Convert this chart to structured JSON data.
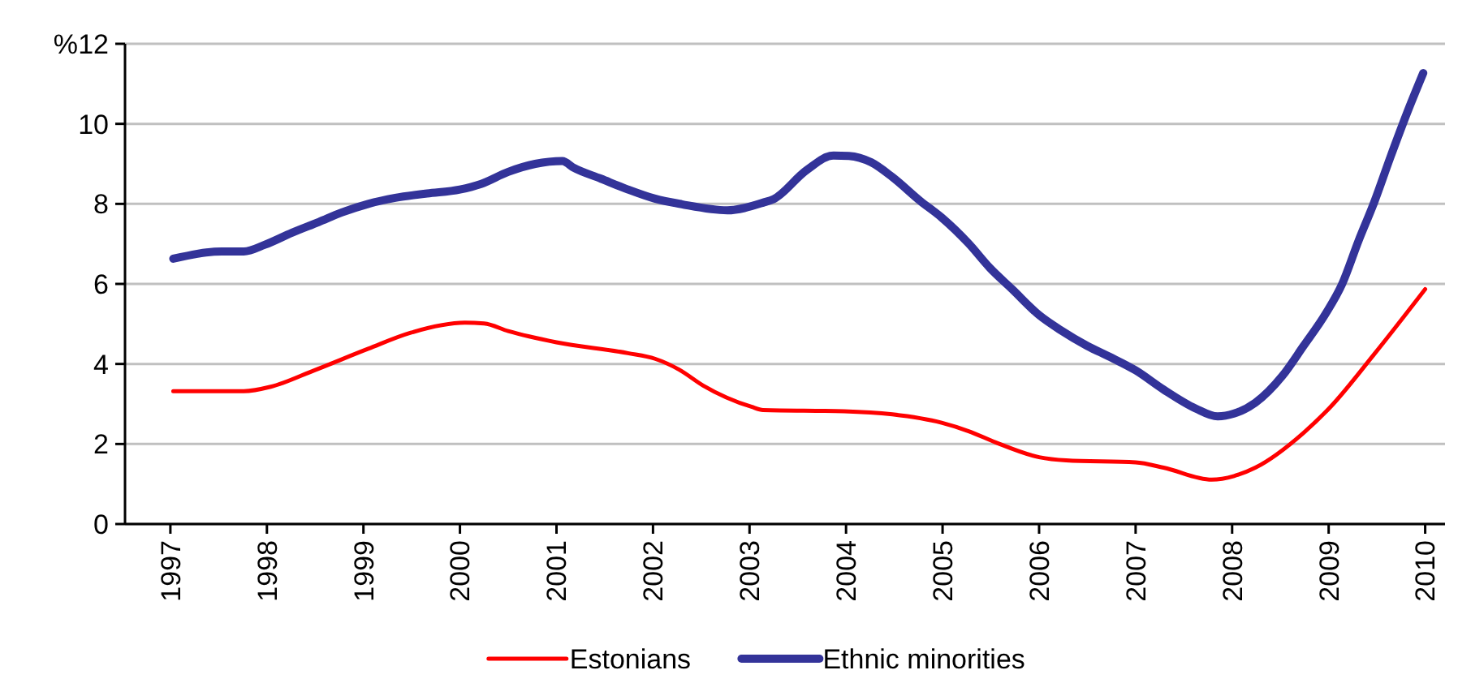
{
  "chart_data": {
    "type": "line",
    "ylabel": "%",
    "xlim": [
      1996.53,
      2010.34
    ],
    "xticks": [
      {
        "value": 1997,
        "label": "1997"
      },
      {
        "value": 1998,
        "label": "1998"
      },
      {
        "value": 1999,
        "label": "1999"
      },
      {
        "value": 2000,
        "label": "2000"
      },
      {
        "value": 2001,
        "label": "2001"
      },
      {
        "value": 2002,
        "label": "2002"
      },
      {
        "value": 2003,
        "label": "2003"
      },
      {
        "value": 2004,
        "label": "2004"
      },
      {
        "value": 2005,
        "label": "2005"
      },
      {
        "value": 2006,
        "label": "2006"
      },
      {
        "value": 2007,
        "label": "2007"
      },
      {
        "value": 2008,
        "label": "2008"
      },
      {
        "value": 2009,
        "label": "2009"
      },
      {
        "value": 2010,
        "label": "2010"
      }
    ],
    "ylim": [
      0,
      12
    ],
    "yticks": [
      0,
      2,
      4,
      6,
      8,
      10,
      12
    ],
    "grid": "y",
    "legend": "bottom",
    "marker": "none",
    "line_style": "solid",
    "series": [
      {
        "name": "Estonians",
        "color": "#ff0000",
        "x": [
          1997.03,
          1997.76,
          1998.04,
          1998.49,
          1999.05,
          1999.49,
          2000.05,
          2000.25,
          2000.5,
          2001.0,
          2001.74,
          2002.02,
          2002.27,
          2002.52,
          2003.02,
          2003.14,
          2003.98,
          2004.48,
          2004.99,
          2005.27,
          2005.55,
          2006.0,
          2006.28,
          2007.0,
          2007.29,
          2007.79,
          2008.02,
          2008.24,
          2008.74,
          2009.02,
          2009.47,
          2010.0
        ],
        "values": [
          3.32,
          3.32,
          3.43,
          3.84,
          4.38,
          4.78,
          5.03,
          5.01,
          4.82,
          4.54,
          4.27,
          4.13,
          3.86,
          3.46,
          2.93,
          2.85,
          2.82,
          2.74,
          2.53,
          2.32,
          2.04,
          1.67,
          1.59,
          1.54,
          1.41,
          1.11,
          1.2,
          1.41,
          2.28,
          2.93,
          4.24,
          5.87
        ]
      },
      {
        "name": "Ethnic minorities",
        "color": "#333399",
        "x": [
          1997.03,
          1997.53,
          1997.76,
          1997.98,
          1998.26,
          1998.54,
          1998.77,
          1999.05,
          1999.33,
          1999.66,
          2000.0,
          2000.22,
          2000.5,
          2000.78,
          2001.06,
          2001.18,
          2001.46,
          2001.74,
          2002.02,
          2002.3,
          2002.77,
          2003.14,
          2003.25,
          2003.59,
          2003.87,
          2004.03,
          2004.26,
          2004.48,
          2004.77,
          2004.99,
          2005.27,
          2005.49,
          2005.72,
          2006.0,
          2006.22,
          2006.5,
          2006.73,
          2007.0,
          2007.29,
          2007.62,
          2007.85,
          2008.02,
          2008.24,
          2008.52,
          2008.74,
          2008.97,
          2009.14,
          2009.31,
          2009.47,
          2009.64,
          2009.81,
          2009.98
        ],
        "values": [
          6.63,
          6.81,
          6.81,
          6.98,
          7.28,
          7.55,
          7.78,
          8.0,
          8.15,
          8.26,
          8.36,
          8.5,
          8.8,
          9.0,
          9.07,
          8.9,
          8.63,
          8.36,
          8.13,
          7.99,
          7.84,
          8.03,
          8.12,
          8.84,
          9.21,
          9.2,
          9.04,
          8.67,
          8.07,
          7.66,
          7.01,
          6.4,
          5.87,
          5.22,
          4.85,
          4.45,
          4.18,
          3.84,
          3.36,
          2.89,
          2.69,
          2.76,
          3.03,
          3.7,
          4.45,
          5.26,
          6.0,
          7.08,
          8.03,
          9.17,
          10.26,
          11.27
        ]
      }
    ]
  }
}
